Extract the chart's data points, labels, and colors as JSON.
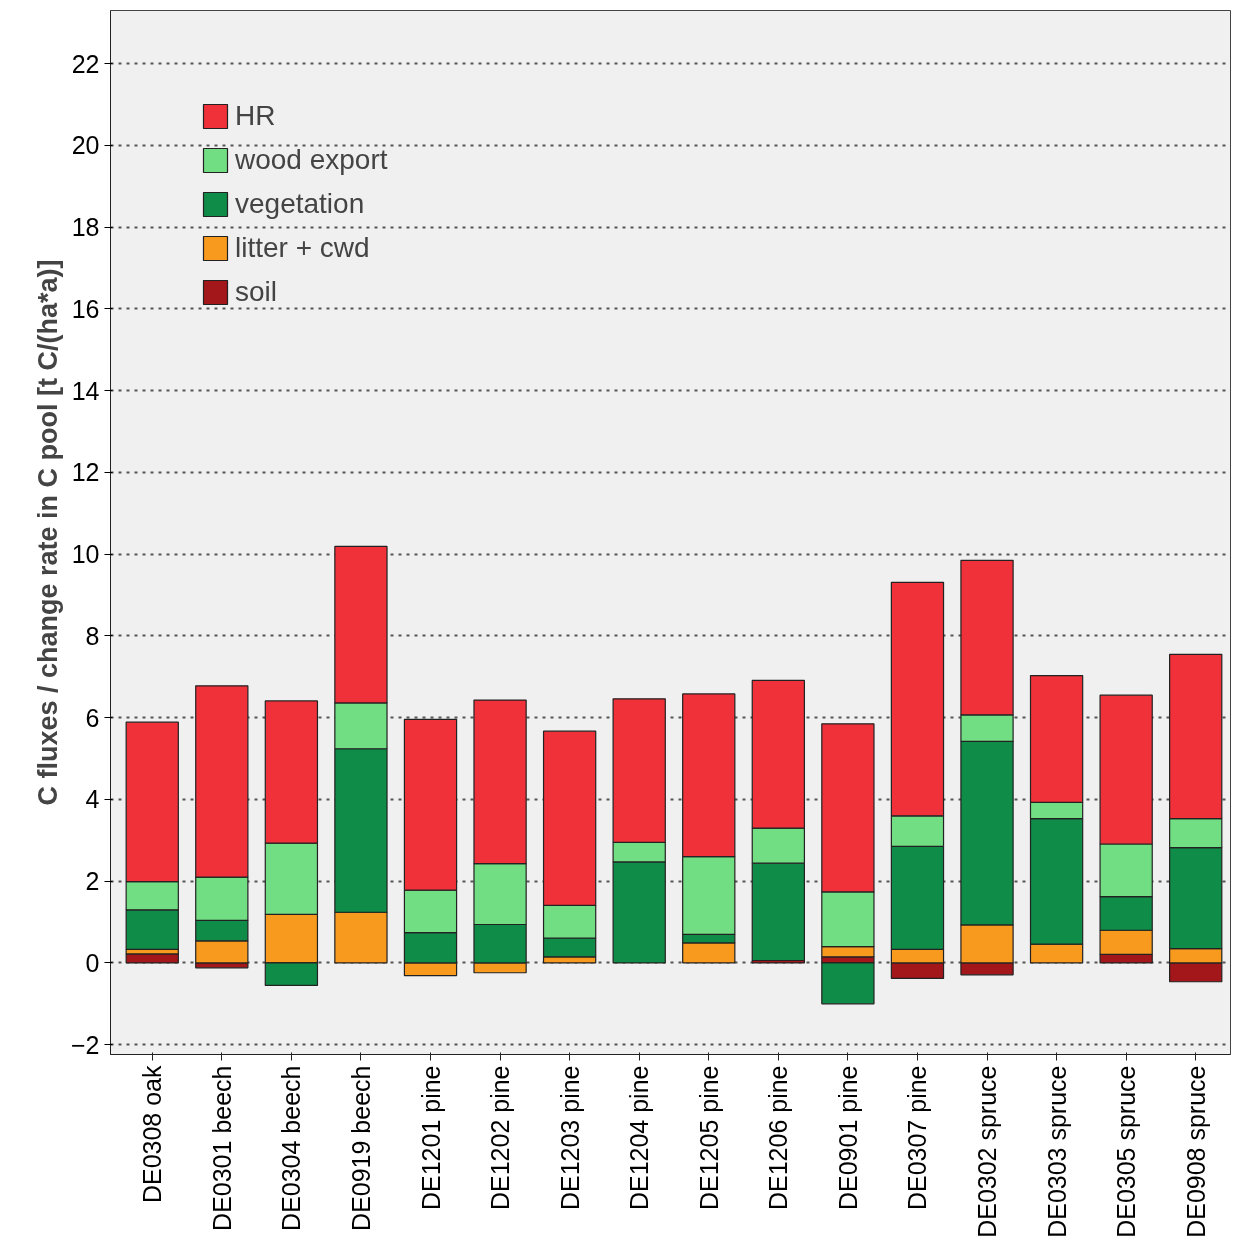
{
  "chart_data": {
    "type": "bar",
    "stacked": true,
    "ylabel": "C fluxes / change rate in C pool [t C/(ha*a)]",
    "categories": [
      "DE0308 oak",
      "DE0301 beech",
      "DE0304 beech",
      "DE0919 beech",
      "DE1201 pine",
      "DE1202 pine",
      "DE1203 pine",
      "DE1204 pine",
      "DE1205 pine",
      "DE1206 pine",
      "DE0901 pine",
      "DE0307 pine",
      "DE0302 spruce",
      "DE0303 spruce",
      "DE0305 spruce",
      "DE0908 spruce"
    ],
    "series": [
      {
        "name": "soil",
        "color": "#a3161a",
        "values": [
          0.22,
          -0.12,
          null,
          null,
          null,
          null,
          null,
          null,
          null,
          0.06,
          0.15,
          -0.38,
          -0.29,
          null,
          0.21,
          -0.46
        ]
      },
      {
        "name": "litter + cwd",
        "color": "#f89a1e",
        "values": [
          0.11,
          0.54,
          1.19,
          1.24,
          -0.31,
          -0.24,
          0.15,
          null,
          0.49,
          null,
          0.25,
          0.33,
          0.93,
          0.46,
          0.59,
          0.35
        ]
      },
      {
        "name": "vegetation",
        "color": "#0f8c47",
        "values": [
          0.97,
          0.5,
          -0.55,
          4.0,
          0.74,
          0.94,
          0.46,
          2.47,
          0.21,
          2.38,
          -1.0,
          2.52,
          4.49,
          3.07,
          0.82,
          2.47
        ]
      },
      {
        "name": "wood export",
        "color": "#72de84",
        "values": [
          0.69,
          1.06,
          1.74,
          1.12,
          1.04,
          1.49,
          0.8,
          0.48,
          1.9,
          0.86,
          1.34,
          0.75,
          0.65,
          0.4,
          1.29,
          0.71
        ]
      },
      {
        "name": "HR",
        "color": "#f0313a",
        "values": [
          3.9,
          4.68,
          3.48,
          3.83,
          4.18,
          4.0,
          4.26,
          3.51,
          3.98,
          3.61,
          4.11,
          5.71,
          3.78,
          3.1,
          3.64,
          4.02
        ]
      }
    ],
    "ylim": [
      -2.24,
      23.3
    ],
    "yticks": [
      -2,
      0,
      2,
      4,
      6,
      8,
      10,
      12,
      14,
      16,
      18,
      20,
      22
    ],
    "grid": "y",
    "legend": "top left"
  }
}
